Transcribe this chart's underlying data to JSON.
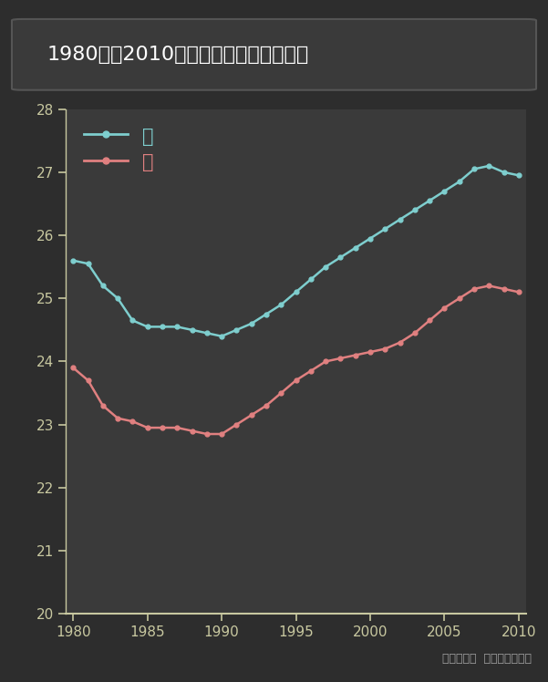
{
  "title": "1980年至2010年中国城市平均初婚年龄",
  "source": "数据来源：  中国国家统计局",
  "bg_color": "#2d2d2d",
  "title_box_color": "#3a3a3a",
  "plot_bg_color": "#3a3a3a",
  "axis_color": "#c8c8a0",
  "tick_color": "#c8c8a0",
  "male_color": "#7ecece",
  "female_color": "#e08080",
  "male_label": "男",
  "female_label": "女",
  "years": [
    1980,
    1981,
    1982,
    1983,
    1984,
    1985,
    1986,
    1987,
    1988,
    1989,
    1990,
    1991,
    1992,
    1993,
    1994,
    1995,
    1996,
    1997,
    1998,
    1999,
    2000,
    2001,
    2002,
    2003,
    2004,
    2005,
    2006,
    2007,
    2008,
    2009,
    2010
  ],
  "male": [
    25.6,
    25.55,
    25.2,
    25.0,
    24.65,
    24.55,
    24.55,
    24.55,
    24.5,
    24.45,
    24.4,
    24.5,
    24.6,
    24.75,
    24.9,
    25.1,
    25.3,
    25.5,
    25.65,
    25.8,
    25.95,
    26.1,
    26.25,
    26.4,
    26.55,
    26.7,
    26.85,
    27.05,
    27.1,
    27.0,
    26.95
  ],
  "female": [
    23.9,
    23.7,
    23.3,
    23.1,
    23.05,
    22.95,
    22.95,
    22.95,
    22.9,
    22.85,
    22.85,
    23.0,
    23.15,
    23.3,
    23.5,
    23.7,
    23.85,
    24.0,
    24.05,
    24.1,
    24.15,
    24.2,
    24.3,
    24.45,
    24.65,
    24.85,
    25.0,
    25.15,
    25.2,
    25.15,
    25.1
  ],
  "ylim": [
    20,
    28
  ],
  "xlim": [
    1979.5,
    2010.5
  ],
  "yticks": [
    20,
    21,
    22,
    23,
    24,
    25,
    26,
    27,
    28
  ],
  "xticks": [
    1980,
    1985,
    1990,
    1995,
    2000,
    2005,
    2010
  ]
}
